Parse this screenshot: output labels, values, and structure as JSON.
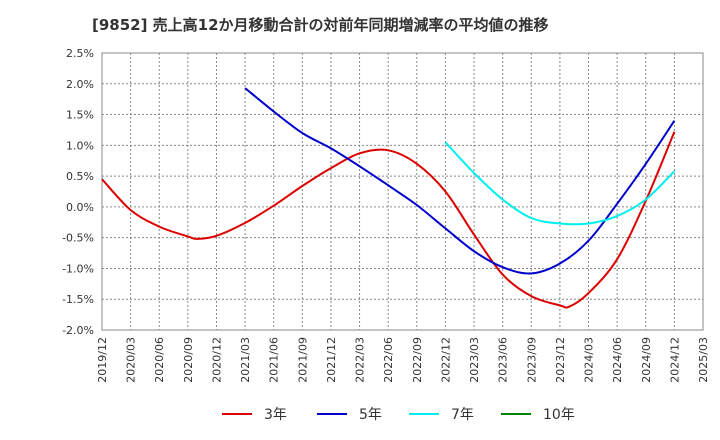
{
  "chart_data": {
    "type": "line",
    "title": "[9852]  売上高12か月移動合計の対前年同期増減率の平均値の推移",
    "x_labels": [
      "2019/12",
      "2020/03",
      "2020/06",
      "2020/09",
      "2020/12",
      "2021/03",
      "2021/06",
      "2021/09",
      "2021/12",
      "2022/03",
      "2022/06",
      "2022/09",
      "2022/12",
      "2023/03",
      "2023/06",
      "2023/09",
      "2023/12",
      "2024/03",
      "2024/06",
      "2024/09",
      "2024/12",
      "2025/03"
    ],
    "y_ticks": [
      "2.5%",
      "2.0%",
      "1.5%",
      "1.0%",
      "0.5%",
      "0.0%",
      "-0.5%",
      "-1.0%",
      "-1.5%",
      "-2.0%"
    ],
    "ylim": [
      -2.0,
      2.5
    ],
    "y_unit": "%",
    "grid": true,
    "legend_position": "bottom",
    "series": [
      {
        "name": "3年",
        "color": "#dd0000",
        "x": [
          "2019/12",
          "2020/03",
          "2020/06",
          "2020/09",
          "2020/10",
          "2020/12",
          "2021/03",
          "2021/06",
          "2021/09",
          "2021/12",
          "2022/03",
          "2022/06",
          "2022/09",
          "2022/12",
          "2023/03",
          "2023/06",
          "2023/09",
          "2023/12",
          "2024/01",
          "2024/03",
          "2024/06",
          "2024/09",
          "2024/12"
        ],
        "values": [
          0.45,
          -0.05,
          -0.32,
          -0.48,
          -0.52,
          -0.47,
          -0.26,
          0.02,
          0.34,
          0.63,
          0.87,
          0.92,
          0.7,
          0.25,
          -0.45,
          -1.1,
          -1.45,
          -1.6,
          -1.62,
          -1.4,
          -0.85,
          0.1,
          1.22
        ]
      },
      {
        "name": "5年",
        "color": "#0000cc",
        "x": [
          "2021/03",
          "2021/06",
          "2021/09",
          "2021/12",
          "2022/03",
          "2022/06",
          "2022/09",
          "2022/12",
          "2023/03",
          "2023/06",
          "2023/09",
          "2023/12",
          "2024/03",
          "2024/06",
          "2024/09",
          "2024/12"
        ],
        "values": [
          1.93,
          1.55,
          1.2,
          0.95,
          0.66,
          0.35,
          0.03,
          -0.35,
          -0.72,
          -0.98,
          -1.08,
          -0.92,
          -0.55,
          0.05,
          0.7,
          1.4
        ]
      },
      {
        "name": "7年",
        "color": "#00eeee",
        "x": [
          "2022/12",
          "2023/03",
          "2023/06",
          "2023/09",
          "2023/12",
          "2024/03",
          "2024/06",
          "2024/09",
          "2024/12"
        ],
        "values": [
          1.05,
          0.55,
          0.12,
          -0.18,
          -0.27,
          -0.27,
          -0.15,
          0.12,
          0.58
        ]
      },
      {
        "name": "10年",
        "color": "#008000",
        "x": [],
        "values": []
      }
    ]
  }
}
